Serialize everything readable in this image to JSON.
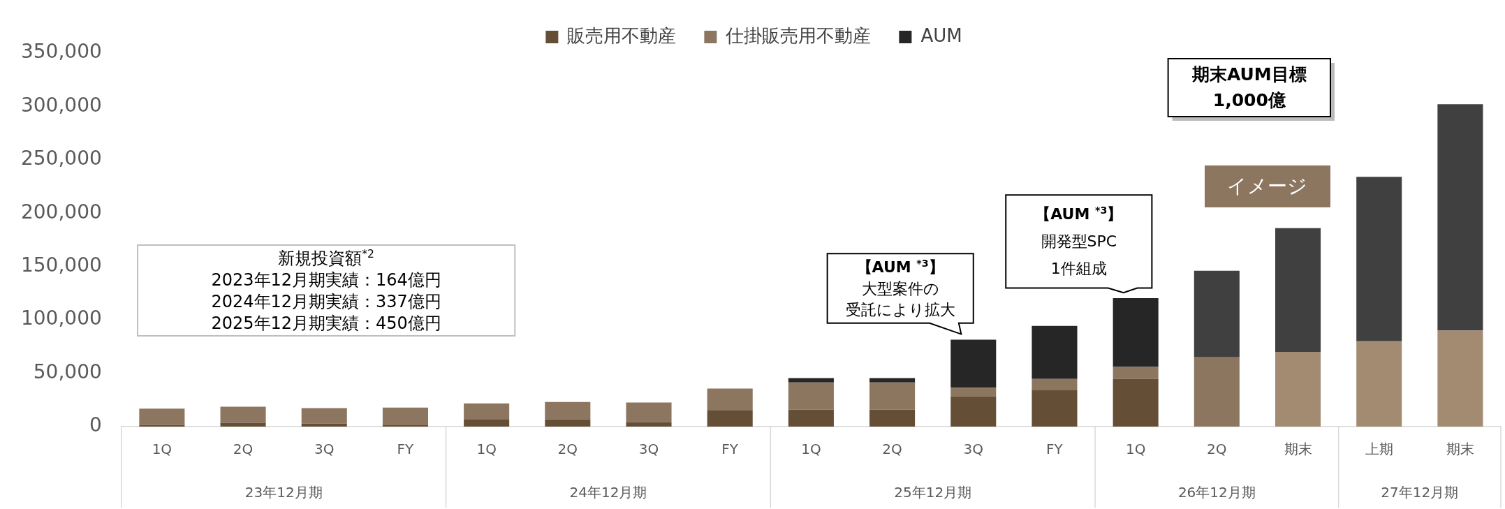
{
  "chart_data": {
    "type": "bar",
    "stacked": true,
    "legend": "top",
    "categories": [
      "1Q",
      "2Q",
      "3Q",
      "FY",
      "1Q",
      "2Q",
      "3Q",
      "FY",
      "1Q",
      "2Q",
      "3Q",
      "FY",
      "1Q",
      "2Q",
      "期末",
      "上期",
      "期末"
    ],
    "series": [
      {
        "name": "販売用不動産",
        "color": "#654e36",
        "values": [
          1700,
          3500,
          3000,
          1300,
          6500,
          6900,
          4300,
          15600,
          15800,
          15800,
          28400,
          34000,
          44600,
          null,
          null,
          null,
          null
        ]
      },
      {
        "name": "仕掛販売用不動産",
        "colors": [
          "#8c7660",
          "#8c7660",
          "#8c7660",
          "#8c7660",
          "#8c7660",
          "#8c7660",
          "#8c7660",
          "#8c7660",
          "#8c7660",
          "#8c7660",
          "#8c7660",
          "#8c7660",
          "#8c7660",
          "#8c7660",
          "#a38b72",
          "#a38b72",
          "#a38b72"
        ],
        "values": [
          15200,
          15200,
          14400,
          16500,
          15200,
          16100,
          18300,
          20000,
          25500,
          25500,
          8100,
          10600,
          11300,
          65000,
          70000,
          80000,
          90000
        ]
      },
      {
        "name": "AUM",
        "colors": [
          "#262626",
          "#262626",
          "#262626",
          "#262626",
          "#262626",
          "#262626",
          "#262626",
          "#262626",
          "#262626",
          "#262626",
          "#262626",
          "#262626",
          "#262626",
          "#404040",
          "#404040",
          "#404040",
          "#404040"
        ],
        "values": [
          null,
          null,
          null,
          null,
          null,
          null,
          null,
          null,
          4100,
          4100,
          44900,
          49800,
          64400,
          81000,
          116000,
          154000,
          212000
        ]
      }
    ],
    "ylim": [
      0,
      350000
    ],
    "yticks": [
      {
        "value": 0,
        "label": "0"
      },
      {
        "value": 50000,
        "label": "50,000"
      },
      {
        "value": 100000,
        "label": "100,000"
      },
      {
        "value": 150000,
        "label": "150,000"
      },
      {
        "value": 200000,
        "label": "200,000"
      },
      {
        "value": 250000,
        "label": "250,000"
      },
      {
        "value": 300000,
        "label": "300,000"
      },
      {
        "value": 350000,
        "label": "350,000"
      }
    ],
    "grid": false,
    "annotations": [
      "新規投資額$^{*2}$\n2023年12月期実績：164億円\n2024年12月期実績：337億円\n2025年12月期実績：450億円",
      "【AUM $^{*3}$】",
      "大型案件の",
      "受託により拡大",
      "【AUM $^{*3}$】",
      "開発型SPC",
      "1件組成",
      "期末AUM目標",
      "1,000億",
      "イメージ",
      "23年12月期",
      "24年12月期",
      "25年12月期",
      "26年12月期",
      "27年12月期"
    ]
  }
}
